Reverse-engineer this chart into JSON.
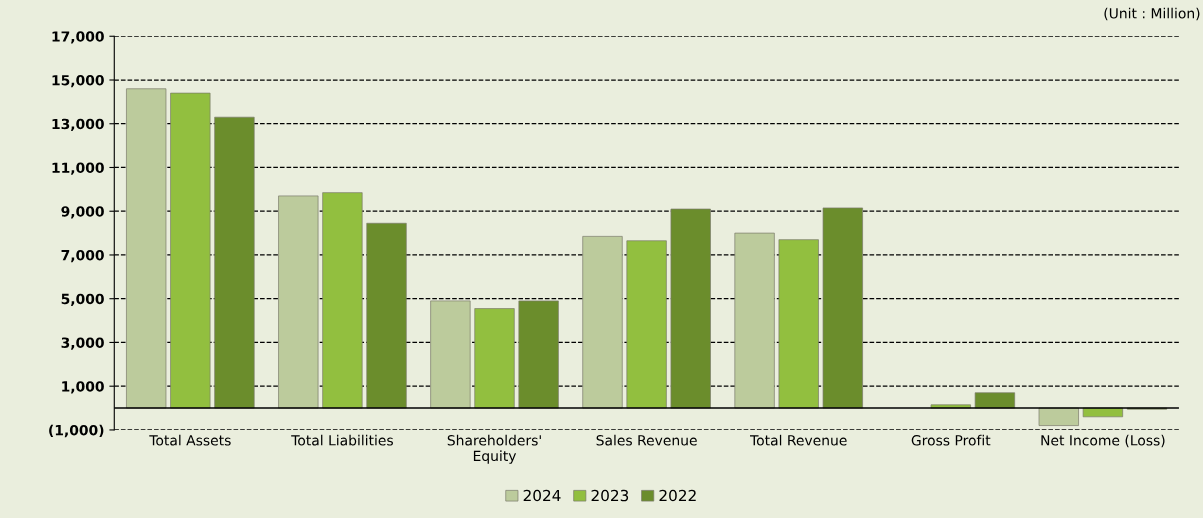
{
  "chart_data": {
    "type": "bar",
    "categories": [
      "Total Assets",
      "Total Liabilities",
      "Shareholders'\nEquity",
      "Sales Revenue",
      "Total Revenue",
      "Gross Profit",
      "Net Income (Loss)"
    ],
    "series": [
      {
        "name": "2024",
        "color": "#bccb9c",
        "values": [
          14600,
          9700,
          4900,
          7850,
          8000,
          null,
          -800
        ]
      },
      {
        "name": "2023",
        "color": "#92bf3f",
        "values": [
          14400,
          9850,
          4550,
          7650,
          7700,
          150,
          -400
        ]
      },
      {
        "name": "2022",
        "color": "#6b8d2c",
        "values": [
          13300,
          8450,
          4900,
          9100,
          9150,
          700,
          -50
        ]
      }
    ],
    "ylim": [
      -1000,
      17000
    ],
    "yticks": [
      {
        "value": -1000,
        "label": "(1,000)"
      },
      {
        "value": 1000,
        "label": "1,000"
      },
      {
        "value": 3000,
        "label": "3,000"
      },
      {
        "value": 5000,
        "label": "5,000"
      },
      {
        "value": 7000,
        "label": "7,000"
      },
      {
        "value": 9000,
        "label": "9,000"
      },
      {
        "value": 11000,
        "label": "11,000"
      },
      {
        "value": 13000,
        "label": "13,000"
      },
      {
        "value": 15000,
        "label": "15,000"
      },
      {
        "value": 17000,
        "label": "17,000"
      }
    ],
    "grid": "y",
    "legend": "bottom",
    "annotations": [
      "(Unit : Million)"
    ]
  }
}
